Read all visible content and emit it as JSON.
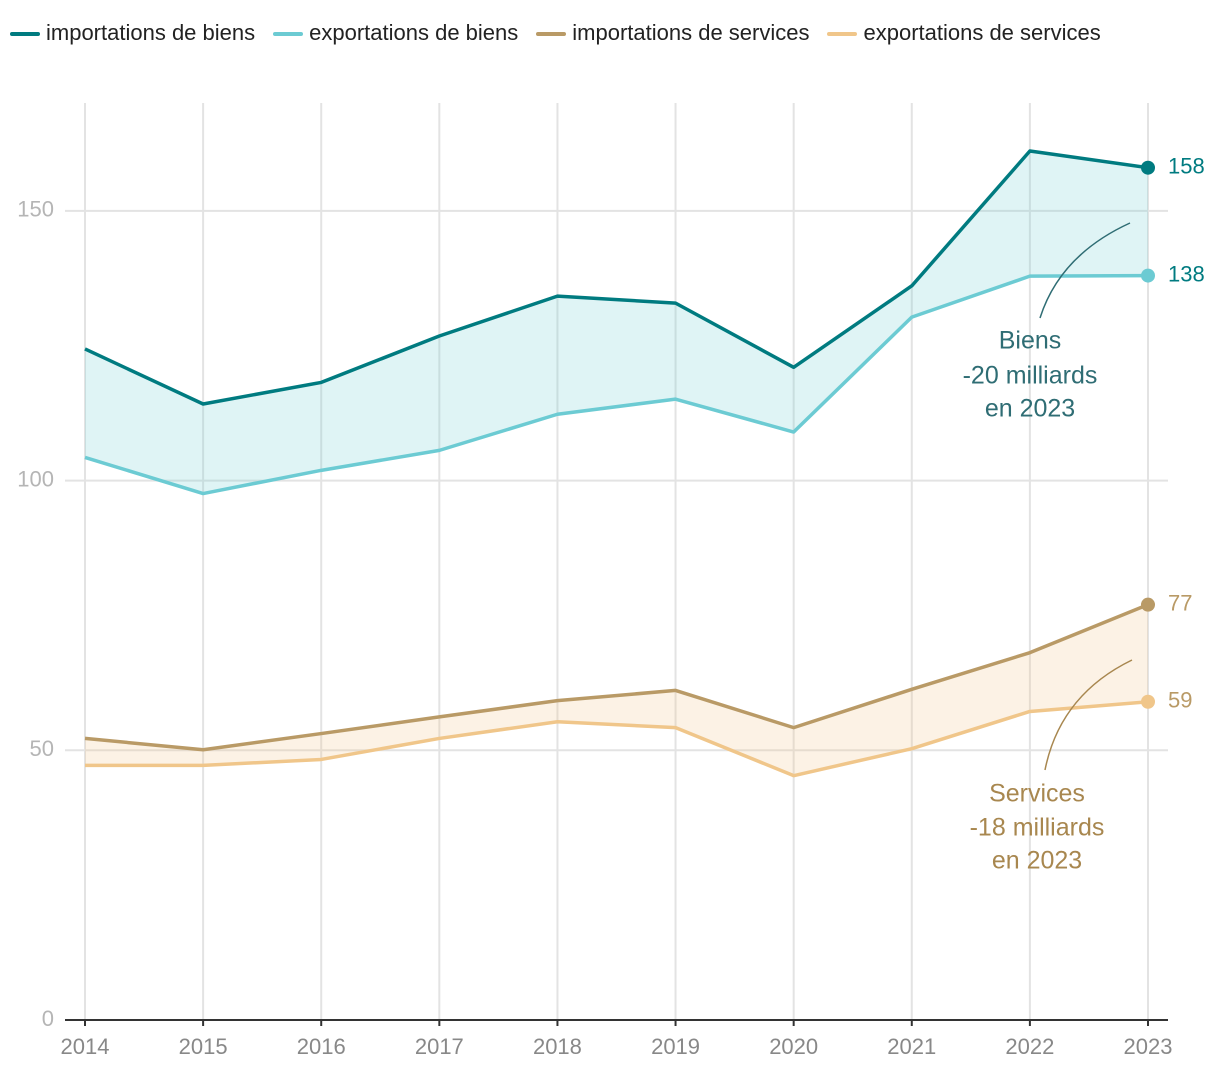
{
  "chart_data": {
    "type": "line",
    "categories": [
      "2014",
      "2015",
      "2016",
      "2017",
      "2018",
      "2019",
      "2020",
      "2021",
      "2022",
      "2023"
    ],
    "series": [
      {
        "name": "importations de biens",
        "color": "#007b80",
        "values": [
          124.4,
          114.2,
          118.2,
          126.8,
          134.2,
          132.9,
          121,
          136.1,
          161.1,
          158
        ]
      },
      {
        "name": "exportations de biens",
        "color": "#6ccbd3",
        "values": [
          104.3,
          97.6,
          101.9,
          105.6,
          112.3,
          115.1,
          109,
          130.3,
          137.9,
          138
        ]
      },
      {
        "name": "importations de services",
        "color": "#b99a66",
        "values": [
          52.2,
          50.1,
          53.1,
          56.2,
          59.2,
          61.1,
          54.2,
          61.3,
          68.1,
          77
        ]
      },
      {
        "name": "exportations de services",
        "color": "#f0c68a",
        "values": [
          47.2,
          47.2,
          48.3,
          52.2,
          55.3,
          54.2,
          45.3,
          50.3,
          57.2,
          59
        ]
      }
    ],
    "ylim": [
      0,
      170
    ],
    "yticks": [
      0,
      50,
      100,
      150
    ],
    "grid": true,
    "legend": "top",
    "annotations": [
      {
        "text": [
          "Biens",
          "-20 milliards",
          "en 2023"
        ],
        "color": "#2f6d74"
      },
      {
        "text": [
          "Services",
          "-18 milliards",
          "en 2023"
        ],
        "color": "#a8874f"
      }
    ]
  }
}
